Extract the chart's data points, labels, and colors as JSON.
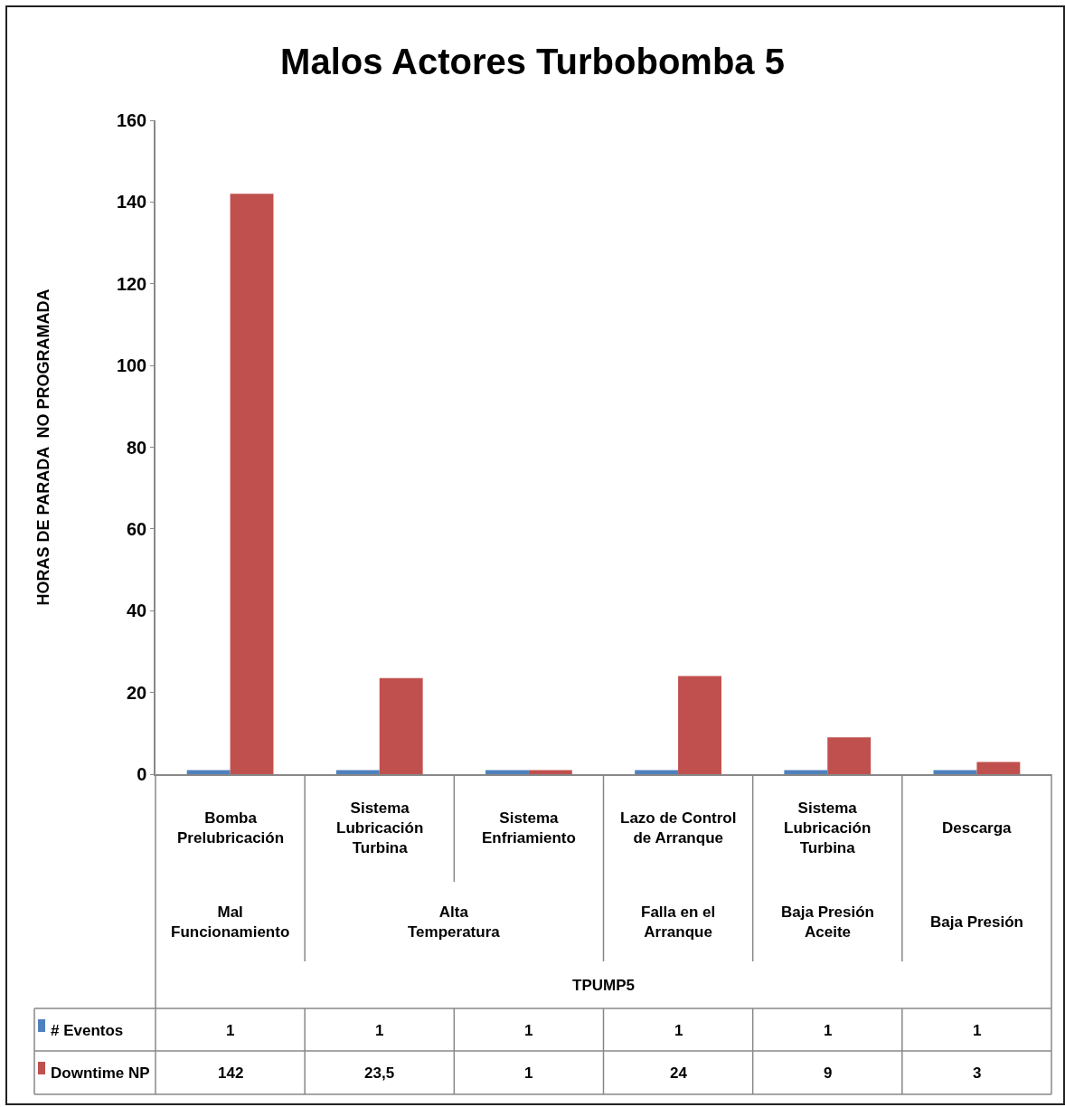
{
  "chart_data": {
    "type": "bar",
    "title": "Malos Actores Turbobomba 5",
    "ylabel": "HORAS DE PARADA  NO PROGRAMADA",
    "categories": [
      "Bomba Prelubricación",
      "Sistema Lubricación Turbina",
      "Sistema Enfriamiento",
      "Lazo de Control de Arranque",
      "Sistema Lubricación Turbina",
      "Descarga"
    ],
    "series": [
      {
        "name": "# Eventos",
        "color": "#4f81bd",
        "values": [
          1,
          1,
          1,
          1,
          1,
          1
        ],
        "value_labels": [
          "1",
          "1",
          "1",
          "1",
          "1",
          "1"
        ]
      },
      {
        "name": "Downtime NP",
        "color": "#c0504d",
        "values": [
          142,
          23.5,
          1,
          24,
          9,
          3
        ],
        "value_labels": [
          "142",
          "23,5",
          "1",
          "24",
          "9",
          "3"
        ]
      }
    ],
    "annotations": [
      "Mal Funcionamiento",
      "Alta Temperatura",
      "Falla en el Arranque",
      "Baja Presión Aceite",
      "Baja Presión",
      "TPUMP5"
    ],
    "ylim": [
      0,
      160
    ],
    "yticks": [
      0,
      20,
      40,
      60,
      80,
      100,
      120,
      140,
      160
    ],
    "grid": false,
    "legend": "bottom"
  }
}
